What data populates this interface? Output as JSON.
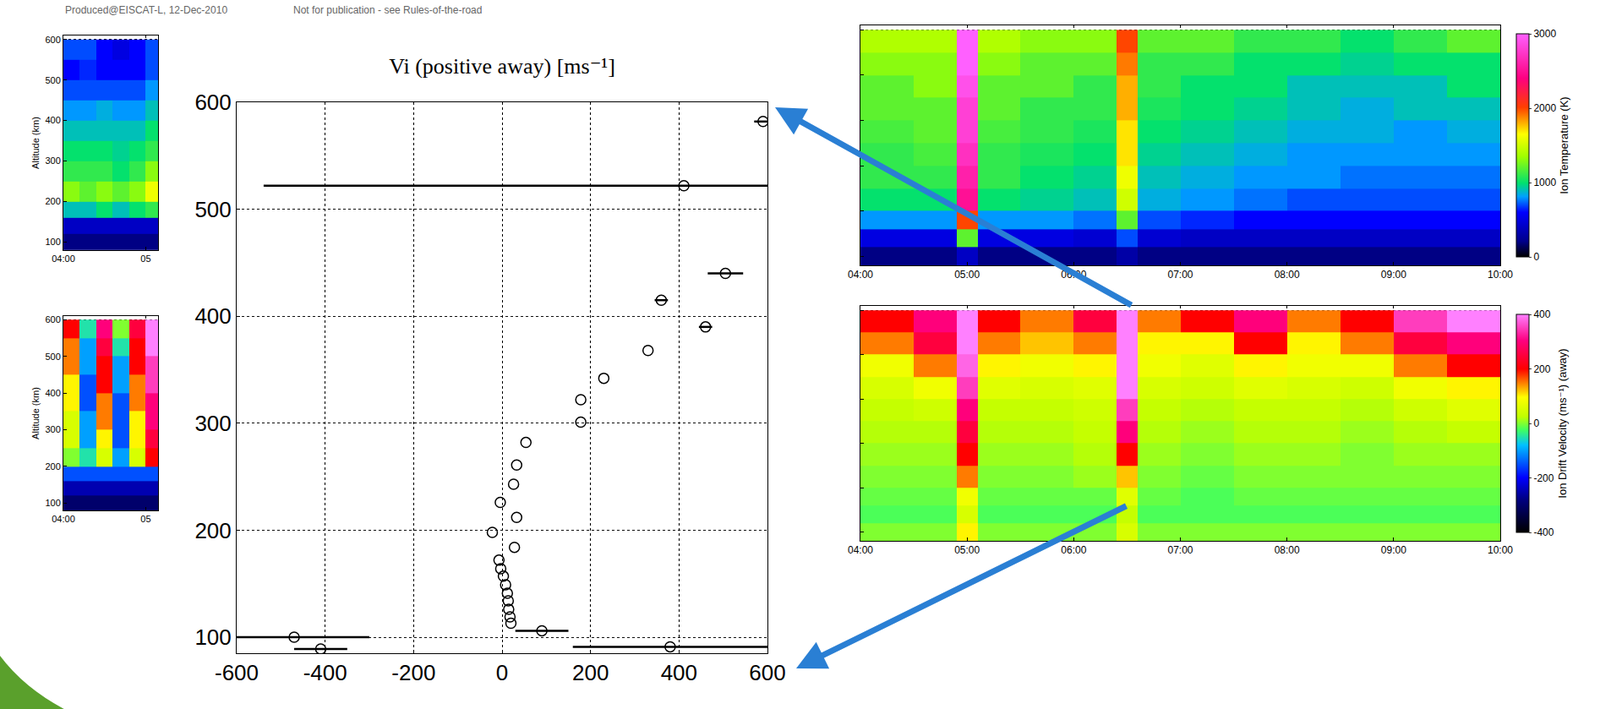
{
  "header": {
    "left": "Produced@EISCAT-L, 12-Dec-2010",
    "right": "Not for publication - see Rules-of-the-road"
  },
  "chart_data": [
    {
      "type": "heatmap",
      "ylabel": "Altitude (km)",
      "x_edges": [
        4,
        4.2,
        4.4,
        4.6,
        4.8,
        5,
        5.15
      ],
      "y_edges": [
        80,
        120,
        160,
        200,
        250,
        300,
        350,
        400,
        450,
        500,
        550,
        600
      ],
      "z": [
        [
          200,
          200,
          200,
          200,
          200,
          200
        ],
        [
          400,
          400,
          400,
          400,
          400,
          400
        ],
        [
          900,
          900,
          1000,
          900,
          1000,
          1100
        ],
        [
          1300,
          1200,
          1300,
          1200,
          1300,
          1600
        ],
        [
          1100,
          1100,
          1100,
          1000,
          1100,
          1300
        ],
        [
          1000,
          1000,
          1000,
          950,
          1000,
          1100
        ],
        [
          900,
          900,
          900,
          900,
          900,
          1000
        ],
        [
          800,
          800,
          850,
          800,
          800,
          900
        ],
        [
          700,
          700,
          700,
          700,
          700,
          800
        ],
        [
          600,
          650,
          600,
          600,
          600,
          700
        ],
        [
          700,
          700,
          600,
          500,
          600,
          700
        ]
      ],
      "zlim": [
        0,
        3000
      ],
      "xlim": [
        4,
        5.15
      ],
      "ylim": [
        80,
        610
      ],
      "xticks": [
        {
          "value": 4,
          "label": "04:00"
        },
        {
          "value": 5,
          "label": "05"
        }
      ],
      "yticks": [
        100,
        200,
        300,
        400,
        500,
        600
      ],
      "grid": true
    },
    {
      "type": "heatmap",
      "ylabel": "Altitude (km)",
      "x_edges": [
        4,
        4.2,
        4.4,
        4.6,
        4.8,
        5,
        5.15
      ],
      "y_edges": [
        80,
        120,
        160,
        200,
        250,
        300,
        350,
        400,
        450,
        500,
        550,
        600
      ],
      "z": [
        [
          -300,
          -300,
          -300,
          -300,
          -300,
          -300
        ],
        [
          -250,
          -250,
          -250,
          -250,
          -250,
          -250
        ],
        [
          -150,
          -150,
          -150,
          -150,
          -150,
          -150
        ],
        [
          0,
          -50,
          50,
          -100,
          50,
          200
        ],
        [
          50,
          -100,
          100,
          -150,
          100,
          250
        ],
        [
          50,
          -100,
          150,
          -150,
          100,
          300
        ],
        [
          100,
          -150,
          150,
          -150,
          150,
          300
        ],
        [
          100,
          -150,
          200,
          -100,
          150,
          350
        ],
        [
          150,
          -100,
          200,
          -100,
          200,
          350
        ],
        [
          150,
          -100,
          250,
          -50,
          200,
          400
        ],
        [
          200,
          -50,
          300,
          0,
          250,
          400
        ]
      ],
      "zlim": [
        -400,
        400
      ],
      "xlim": [
        4,
        5.15
      ],
      "ylim": [
        80,
        610
      ],
      "xticks": [
        {
          "value": 4,
          "label": "04:00"
        },
        {
          "value": 5,
          "label": "05"
        }
      ],
      "yticks": [
        100,
        200,
        300,
        400,
        500,
        600
      ],
      "grid": true
    },
    {
      "type": "scatter",
      "title": "Vi (positive away) [ms⁻¹]",
      "x": [
        -470,
        -410,
        90,
        380,
        20,
        18,
        15,
        14,
        12,
        8,
        3,
        -3,
        -7,
        -22,
        -4,
        28,
        33,
        26,
        33,
        54,
        178,
        178,
        230,
        330,
        360,
        460,
        505,
        411,
        590
      ],
      "y": [
        100,
        89,
        106,
        91,
        113,
        119,
        126,
        134,
        141,
        149,
        157,
        164,
        172,
        198,
        226,
        184,
        212,
        243,
        261,
        282,
        301,
        322,
        342,
        368,
        415,
        390,
        440,
        522,
        582
      ],
      "x_errors": [
        170,
        60,
        60,
        220,
        0,
        0,
        0,
        0,
        0,
        0,
        0,
        0,
        0,
        0,
        0,
        0,
        0,
        0,
        0,
        0,
        0,
        0,
        0,
        0,
        15,
        15,
        40,
        950,
        20
      ],
      "xlim": [
        -600,
        600
      ],
      "ylim": [
        85,
        600
      ],
      "xticks": [
        -600,
        -400,
        -200,
        0,
        200,
        400,
        600
      ],
      "yticks": [
        100,
        200,
        300,
        400,
        500,
        600
      ],
      "grid": true,
      "marker": "circle-open",
      "color": "#000000"
    },
    {
      "type": "heatmap",
      "x_edges": [
        4,
        4.5,
        4.9,
        5.1,
        5.5,
        6,
        6.4,
        6.6,
        7,
        7.5,
        8,
        8.5,
        9,
        9.5,
        10
      ],
      "y_edges": [
        80,
        120,
        160,
        200,
        250,
        300,
        350,
        400,
        450,
        500,
        550,
        600
      ],
      "z": [
        [
          200,
          200,
          400,
          200,
          200,
          200,
          300,
          200,
          200,
          200,
          200,
          200,
          200,
          200
        ],
        [
          500,
          500,
          1200,
          500,
          500,
          450,
          700,
          450,
          400,
          400,
          400,
          400,
          400,
          400
        ],
        [
          800,
          800,
          2000,
          800,
          800,
          750,
          1200,
          700,
          650,
          600,
          600,
          600,
          600,
          600
        ],
        [
          1000,
          1000,
          2500,
          1000,
          950,
          900,
          1500,
          850,
          800,
          750,
          700,
          700,
          700,
          700
        ],
        [
          1100,
          1100,
          2600,
          1100,
          1000,
          950,
          1600,
          900,
          850,
          800,
          800,
          750,
          750,
          750
        ],
        [
          1100,
          1150,
          2700,
          1100,
          1050,
          1000,
          1700,
          950,
          900,
          850,
          800,
          800,
          800,
          800
        ],
        [
          1150,
          1200,
          2800,
          1150,
          1100,
          1050,
          1700,
          1000,
          950,
          900,
          850,
          850,
          800,
          850
        ],
        [
          1200,
          1200,
          2800,
          1200,
          1100,
          1100,
          1800,
          1050,
          1000,
          950,
          900,
          850,
          900,
          900
        ],
        [
          1200,
          1300,
          2900,
          1200,
          1200,
          1100,
          1800,
          1100,
          1000,
          1000,
          900,
          900,
          900,
          1000
        ],
        [
          1300,
          1300,
          3000,
          1300,
          1200,
          1200,
          1900,
          1100,
          1100,
          1000,
          1000,
          950,
          1000,
          1000
        ],
        [
          1400,
          1400,
          3000,
          1400,
          1300,
          1300,
          2000,
          1200,
          1200,
          1100,
          1100,
          1000,
          1100,
          1200
        ]
      ],
      "colorbar": {
        "title": "Ion Temperature (K)",
        "range": [
          0,
          3000
        ],
        "ticks": [
          0,
          1000,
          2000,
          3000
        ]
      },
      "xlim": [
        4,
        10
      ],
      "ylim": [
        80,
        610
      ],
      "xticks": [
        {
          "value": 4,
          "label": "04:00"
        },
        {
          "value": 5,
          "label": "05:00"
        },
        {
          "value": 6,
          "label": "06:00"
        },
        {
          "value": 7,
          "label": "07:00"
        },
        {
          "value": 8,
          "label": "08:00"
        },
        {
          "value": 9,
          "label": "09:00"
        },
        {
          "value": 10,
          "label": "10:00"
        }
      ],
      "yticks": [
        100,
        200,
        300,
        400,
        500,
        600
      ],
      "grid": true,
      "tick_labels": "x"
    },
    {
      "type": "heatmap",
      "x_edges": [
        4,
        4.5,
        4.9,
        5.1,
        5.5,
        6,
        6.4,
        6.6,
        7,
        7.5,
        8,
        8.5,
        9,
        9.5,
        10
      ],
      "y_edges": [
        80,
        120,
        160,
        200,
        250,
        300,
        350,
        400,
        450,
        500,
        550,
        600
      ],
      "z": [
        [
          0,
          0,
          100,
          0,
          0,
          0,
          50,
          0,
          0,
          0,
          0,
          0,
          0,
          0
        ],
        [
          -20,
          -20,
          50,
          -20,
          -20,
          -20,
          30,
          -20,
          -20,
          -20,
          -20,
          -20,
          -20,
          -20
        ],
        [
          -10,
          -10,
          80,
          -10,
          -10,
          -10,
          60,
          -10,
          -20,
          -10,
          -10,
          -10,
          -10,
          -10
        ],
        [
          0,
          0,
          150,
          0,
          0,
          10,
          120,
          0,
          -10,
          0,
          0,
          0,
          0,
          0
        ],
        [
          10,
          10,
          200,
          10,
          10,
          20,
          200,
          10,
          0,
          10,
          10,
          0,
          10,
          10
        ],
        [
          20,
          20,
          250,
          20,
          20,
          30,
          300,
          20,
          10,
          20,
          20,
          10,
          20,
          30
        ],
        [
          30,
          40,
          300,
          30,
          30,
          40,
          350,
          30,
          20,
          30,
          30,
          20,
          40,
          60
        ],
        [
          50,
          80,
          350,
          60,
          50,
          60,
          400,
          50,
          40,
          60,
          50,
          40,
          80,
          100
        ],
        [
          80,
          150,
          380,
          100,
          80,
          100,
          400,
          80,
          60,
          100,
          80,
          80,
          150,
          200
        ],
        [
          150,
          250,
          400,
          150,
          120,
          150,
          400,
          100,
          100,
          200,
          100,
          150,
          250,
          300
        ],
        [
          200,
          300,
          400,
          200,
          150,
          250,
          400,
          150,
          200,
          300,
          150,
          200,
          350,
          400
        ]
      ],
      "colorbar": {
        "title": "Ion Drift Velocity (ms⁻¹) (away)",
        "range": [
          -400,
          400
        ],
        "ticks": [
          -400,
          -200,
          0,
          200,
          400
        ]
      },
      "xlim": [
        4,
        10
      ],
      "ylim": [
        80,
        610
      ],
      "xticks": [
        {
          "value": 4,
          "label": "04:00"
        },
        {
          "value": 5,
          "label": "05:00"
        },
        {
          "value": 6,
          "label": "06:00"
        },
        {
          "value": 7,
          "label": "07:00"
        },
        {
          "value": 8,
          "label": "08:00"
        },
        {
          "value": 9,
          "label": "09:00"
        },
        {
          "value": 10,
          "label": "10:00"
        }
      ],
      "yticks": [
        100,
        200,
        300,
        400,
        500,
        600
      ],
      "grid": true,
      "tick_labels": "x"
    }
  ]
}
